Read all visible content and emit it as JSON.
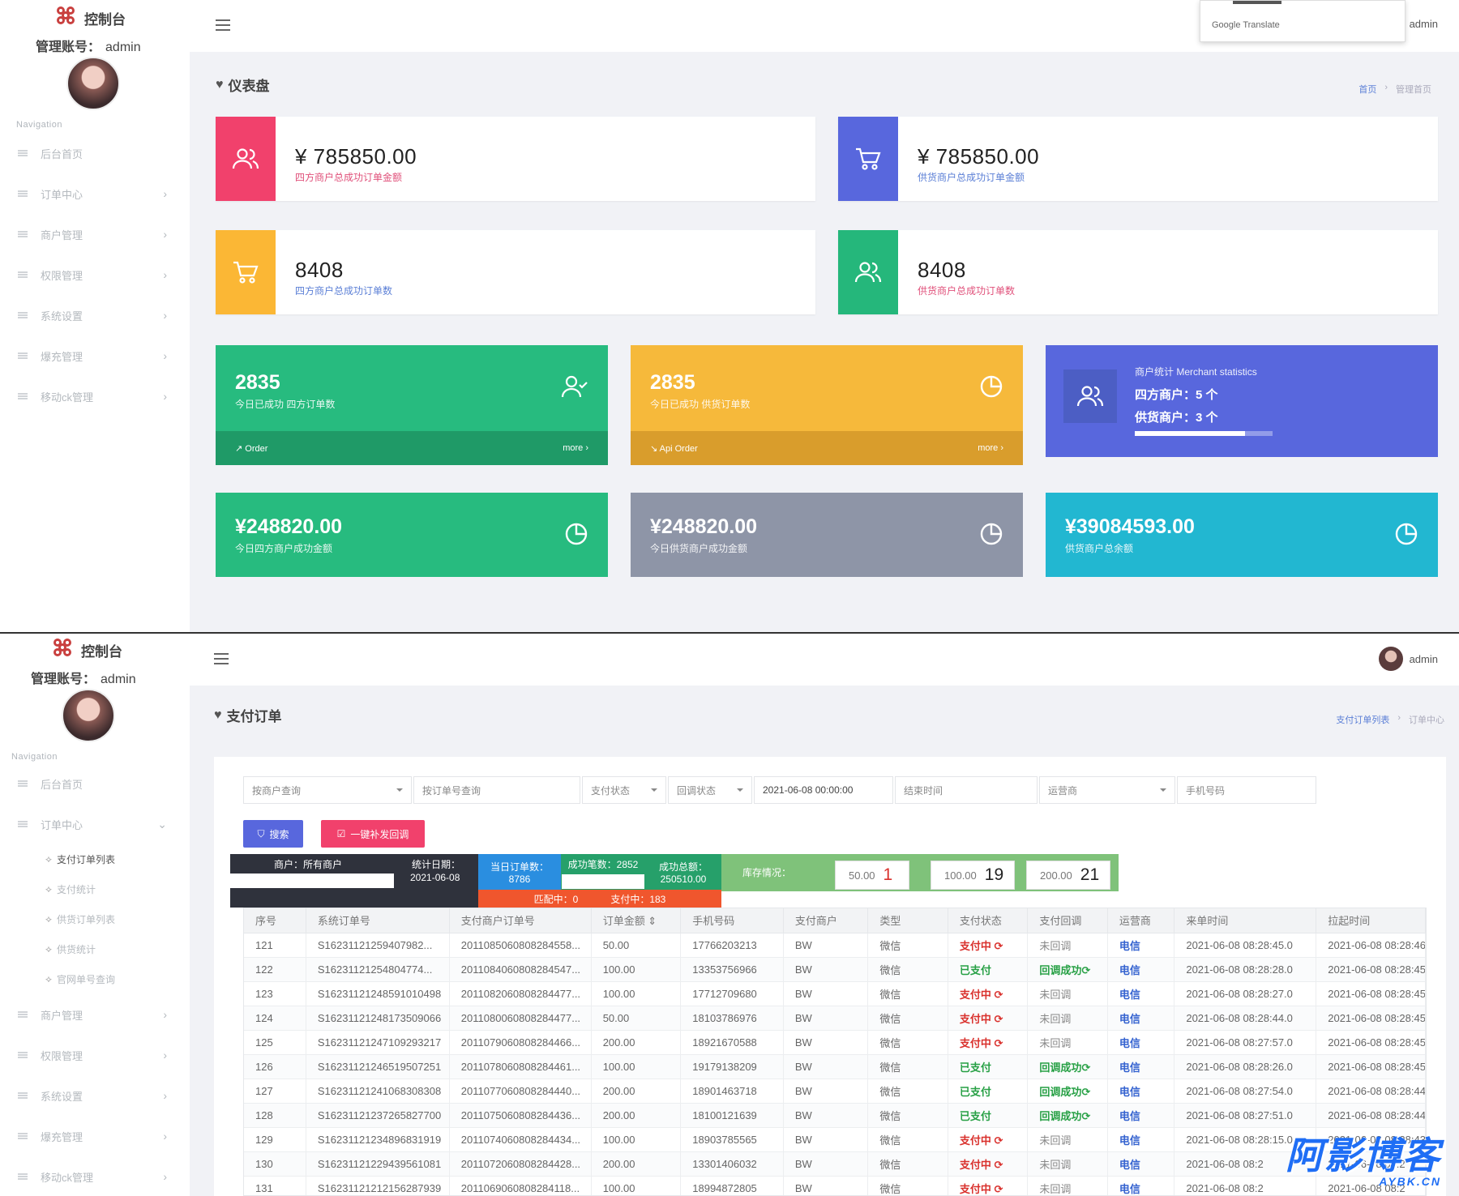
{
  "common": {
    "logo_text": "控制台",
    "account_label": "管理账号：",
    "account_name": "admin",
    "nav_caption": "Navigation",
    "top_username": "admin",
    "translate_label": "Google Translate"
  },
  "dashboard": {
    "title": "仪表盘",
    "breadcrumb": [
      "首页",
      "管理首页"
    ],
    "sidebar": [
      {
        "label": "后台首页",
        "chevron": ""
      },
      {
        "label": "订单中心",
        "chevron": "›"
      },
      {
        "label": "商户管理",
        "chevron": "›"
      },
      {
        "label": "权限管理",
        "chevron": "›"
      },
      {
        "label": "系统设置",
        "chevron": "›"
      },
      {
        "label": "爆充管理",
        "chevron": "›"
      },
      {
        "label": "移动ck管理",
        "chevron": "›"
      }
    ],
    "stats": [
      {
        "amount": "¥ 785850.00",
        "caption": "四方商户总成功订单金额",
        "icon": "users-icon",
        "color": "#f1416c",
        "caption_color": "#e0507a"
      },
      {
        "amount": "¥ 785850.00",
        "caption": "供货商户总成功订单金额",
        "icon": "cart-icon",
        "color": "#5867dd",
        "caption_color": "#5b7fd6"
      },
      {
        "amount": "8408",
        "caption": "四方商户总成功订单数",
        "icon": "cart-icon",
        "color": "#fbb735",
        "caption_color": "#5b7fd6"
      },
      {
        "amount": "8408",
        "caption": "供货商户总成功订单数",
        "icon": "users-icon",
        "color": "#25b77b",
        "caption_color": "#e0507a"
      }
    ],
    "cards": [
      {
        "value": "2835",
        "caption": "今日已成功 四方订单数",
        "footer": "Order",
        "more": "more ›",
        "color": "#27bb7f",
        "foot_color": "#1f9a67",
        "icon": "user-check-icon"
      },
      {
        "value": "2835",
        "caption": "今日已成功 供货订单数",
        "footer": "Api Order",
        "more": "more ›",
        "color": "#f6b93b",
        "foot_color": "#d99d2c",
        "icon": "pie-chart-icon"
      }
    ],
    "merchant": {
      "title": "商户统计 Merchant statistics",
      "four_label": "四方商户：5 个",
      "supply_label": "供货商户：3 个",
      "progress": 0.8,
      "color": "#5867dd"
    },
    "money_cards": [
      {
        "value": "¥248820.00",
        "caption": "今日四方商户成功金额",
        "color": "#27bb7f"
      },
      {
        "value": "¥248820.00",
        "caption": "今日供货商户成功金额",
        "color": "#8e95a7"
      },
      {
        "value": "¥39084593.00",
        "caption": "供货商户总余额",
        "color": "#22b7d1"
      }
    ]
  },
  "orders": {
    "title": "支付订单",
    "breadcrumb": [
      "支付订单列表",
      "订单中心"
    ],
    "sidebar": [
      {
        "label": "后台首页",
        "chevron": ""
      },
      {
        "label": "订单中心",
        "chevron": "⌄"
      }
    ],
    "sub_items": [
      "支付订单列表",
      "支付统计",
      "供货订单列表",
      "供货统计",
      "官网单号查询"
    ],
    "sidebar_rest": [
      {
        "label": "商户管理",
        "chevron": "›"
      },
      {
        "label": "权限管理",
        "chevron": "›"
      },
      {
        "label": "系统设置",
        "chevron": "›"
      },
      {
        "label": "爆充管理",
        "chevron": "›"
      },
      {
        "label": "移动ck管理",
        "chevron": "›"
      }
    ],
    "filters": {
      "merchant": "按商户查询",
      "order_no": "按订单号查询",
      "pay_status": "支付状态",
      "callback_status": "回调状态",
      "start_time": "2021-06-08 00:00:00",
      "end_time": "结束时间",
      "carrier": "运营商",
      "phone": "手机号码"
    },
    "search_button": "搜索",
    "resend_button": "一键补发回调",
    "summary": {
      "merchant_label": "商户：所有商户",
      "date_label": "统计日期：",
      "date_value": "2021-06-08",
      "today_orders_label": "当日订单数：",
      "today_orders_value": "8786",
      "success_count_label": "成功笔数：2852",
      "success_total_label": "成功总额：",
      "success_total_value": "250510.00",
      "matching": "匹配中：0",
      "paying": "支付中：183",
      "stock_label": "库存情况：",
      "stock": [
        {
          "unit": "50.00",
          "count": "1",
          "count_color": "#d9302c"
        },
        {
          "unit": "100.00",
          "count": "19",
          "count_color": "#222"
        },
        {
          "unit": "200.00",
          "count": "21",
          "count_color": "#222"
        }
      ]
    },
    "table": {
      "headers": [
        "序号",
        "系统订单号",
        "支付商户订单号",
        "订单金额 ⇕",
        "手机号码",
        "支付商户",
        "类型",
        "支付状态",
        "支付回调",
        "运营商",
        "来单时间",
        "拉起时间"
      ],
      "rows": [
        [
          "121",
          "S16231121259407982...",
          "2011085060808284558...",
          "50.00",
          "17766203213",
          "BW",
          "微信",
          "支付中 ⟳",
          "未回调",
          "电信",
          "2021-06-08 08:28:45.0",
          "2021-06-08 08:28:46"
        ],
        [
          "122",
          "S16231121254804774...",
          "2011084060808284547...",
          "100.00",
          "13353756966",
          "BW",
          "微信",
          "已支付",
          "回调成功⟳",
          "电信",
          "2021-06-08 08:28:28.0",
          "2021-06-08 08:28:45"
        ],
        [
          "123",
          "S16231121248591010498",
          "2011082060808284477...",
          "100.00",
          "17712709680",
          "BW",
          "微信",
          "支付中 ⟳",
          "未回调",
          "电信",
          "2021-06-08 08:28:27.0",
          "2021-06-08 08:28:45"
        ],
        [
          "124",
          "S16231121248173509066",
          "2011080060808284477...",
          "50.00",
          "18103786976",
          "BW",
          "微信",
          "支付中 ⟳",
          "未回调",
          "电信",
          "2021-06-08 08:28:44.0",
          "2021-06-08 08:28:45"
        ],
        [
          "125",
          "S16231121247109293217",
          "2011079060808284466...",
          "200.00",
          "18921670588",
          "BW",
          "微信",
          "支付中 ⟳",
          "未回调",
          "电信",
          "2021-06-08 08:27:57.0",
          "2021-06-08 08:28:45"
        ],
        [
          "126",
          "S16231121246519507251",
          "2011078060808284461...",
          "100.00",
          "19179138209",
          "BW",
          "微信",
          "已支付",
          "回调成功⟳",
          "电信",
          "2021-06-08 08:28:26.0",
          "2021-06-08 08:28:45"
        ],
        [
          "127",
          "S16231121241068308308",
          "2011077060808284440...",
          "200.00",
          "18901463718",
          "BW",
          "微信",
          "已支付",
          "回调成功⟳",
          "电信",
          "2021-06-08 08:27:54.0",
          "2021-06-08 08:28:44"
        ],
        [
          "128",
          "S16231121237265827700",
          "2011075060808284436...",
          "200.00",
          "18100121639",
          "BW",
          "微信",
          "已支付",
          "回调成功⟳",
          "电信",
          "2021-06-08 08:27:51.0",
          "2021-06-08 08:28:44"
        ],
        [
          "129",
          "S16231121234896831919",
          "2011074060808284434...",
          "100.00",
          "18903785565",
          "BW",
          "微信",
          "支付中 ⟳",
          "未回调",
          "电信",
          "2021-06-08 08:28:15.0",
          "2021-06-08 08:28:43"
        ],
        [
          "130",
          "S16231121229439561081",
          "2011072060808284428...",
          "200.00",
          "13301406032",
          "BW",
          "微信",
          "支付中 ⟳",
          "未回调",
          "电信",
          "2021-06-08 08:2",
          "2021-06-08 08:2"
        ],
        [
          "131",
          "S16231121212156287939",
          "2011069060808284118...",
          "100.00",
          "18994872805",
          "BW",
          "微信",
          "支付中 ⟳",
          "未回调",
          "电信",
          "2021-06-08 08:2",
          "2021-06-08 08:2"
        ]
      ]
    }
  },
  "watermark": {
    "main": "阿影博客",
    "sub": "AYBK.CN"
  }
}
